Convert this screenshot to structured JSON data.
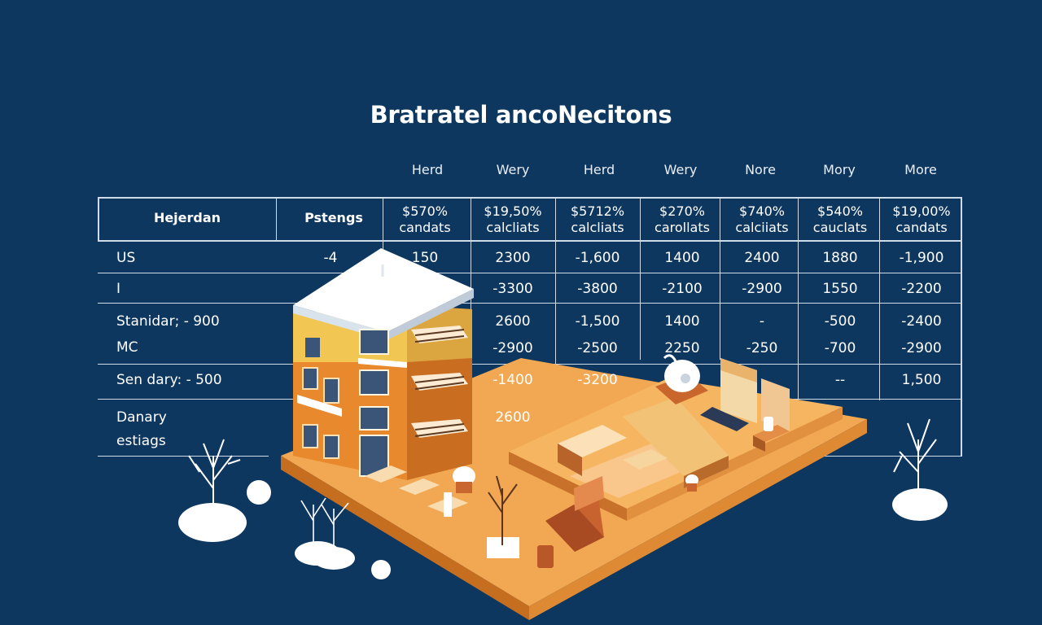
{
  "title": "Bratratel ancoNecitons",
  "column_labels": [
    "Herd",
    "Wery",
    "Herd",
    "Wery",
    "Nore",
    "Mory",
    "More"
  ],
  "table": {
    "header_left": "Hejerdan",
    "header_mid": "Pstengs",
    "header_cells": [
      {
        "price": "$570%",
        "label": "candats"
      },
      {
        "price": "$19,50%",
        "label": "calcliats"
      },
      {
        "price": "$5712%",
        "label": "calcliats"
      },
      {
        "price": "$270%",
        "label": "carollats"
      },
      {
        "price": "$740%",
        "label": "calciiats"
      },
      {
        "price": "$540%",
        "label": "cauclats"
      },
      {
        "price": "$19,00%",
        "label": "candats"
      }
    ],
    "row_labels": {
      "us": "US",
      "i": "I",
      "standard": "Stanidar; - 900",
      "mc": "MC",
      "secondary": "Sen dary: - 500",
      "danary": "Danary",
      "estiags": "estiags"
    },
    "pstengs_value": "-4",
    "rows": [
      [
        "150",
        "2300",
        "-1,600",
        "1400",
        "2400",
        "1880",
        "-1,900"
      ],
      [
        "",
        "-3300",
        "-3800",
        "-2100",
        "-2900",
        "1550",
        "-2200"
      ],
      [
        "",
        "2600",
        "-1,500",
        "1400",
        "-",
        "-500",
        "-2400"
      ],
      [
        "",
        "-2900",
        "-2500",
        "2250",
        "-250",
        "-700",
        "-2900"
      ],
      [
        "",
        "-1400",
        "-3200",
        "",
        "",
        "--",
        "1,500"
      ],
      [
        "",
        "2600",
        "",
        "",
        "",
        "",
        ""
      ]
    ]
  },
  "colors": {
    "background": "#0e3760",
    "building_orange": "#e9892e",
    "floor": "#f2a853",
    "snow": "#ffffff"
  }
}
